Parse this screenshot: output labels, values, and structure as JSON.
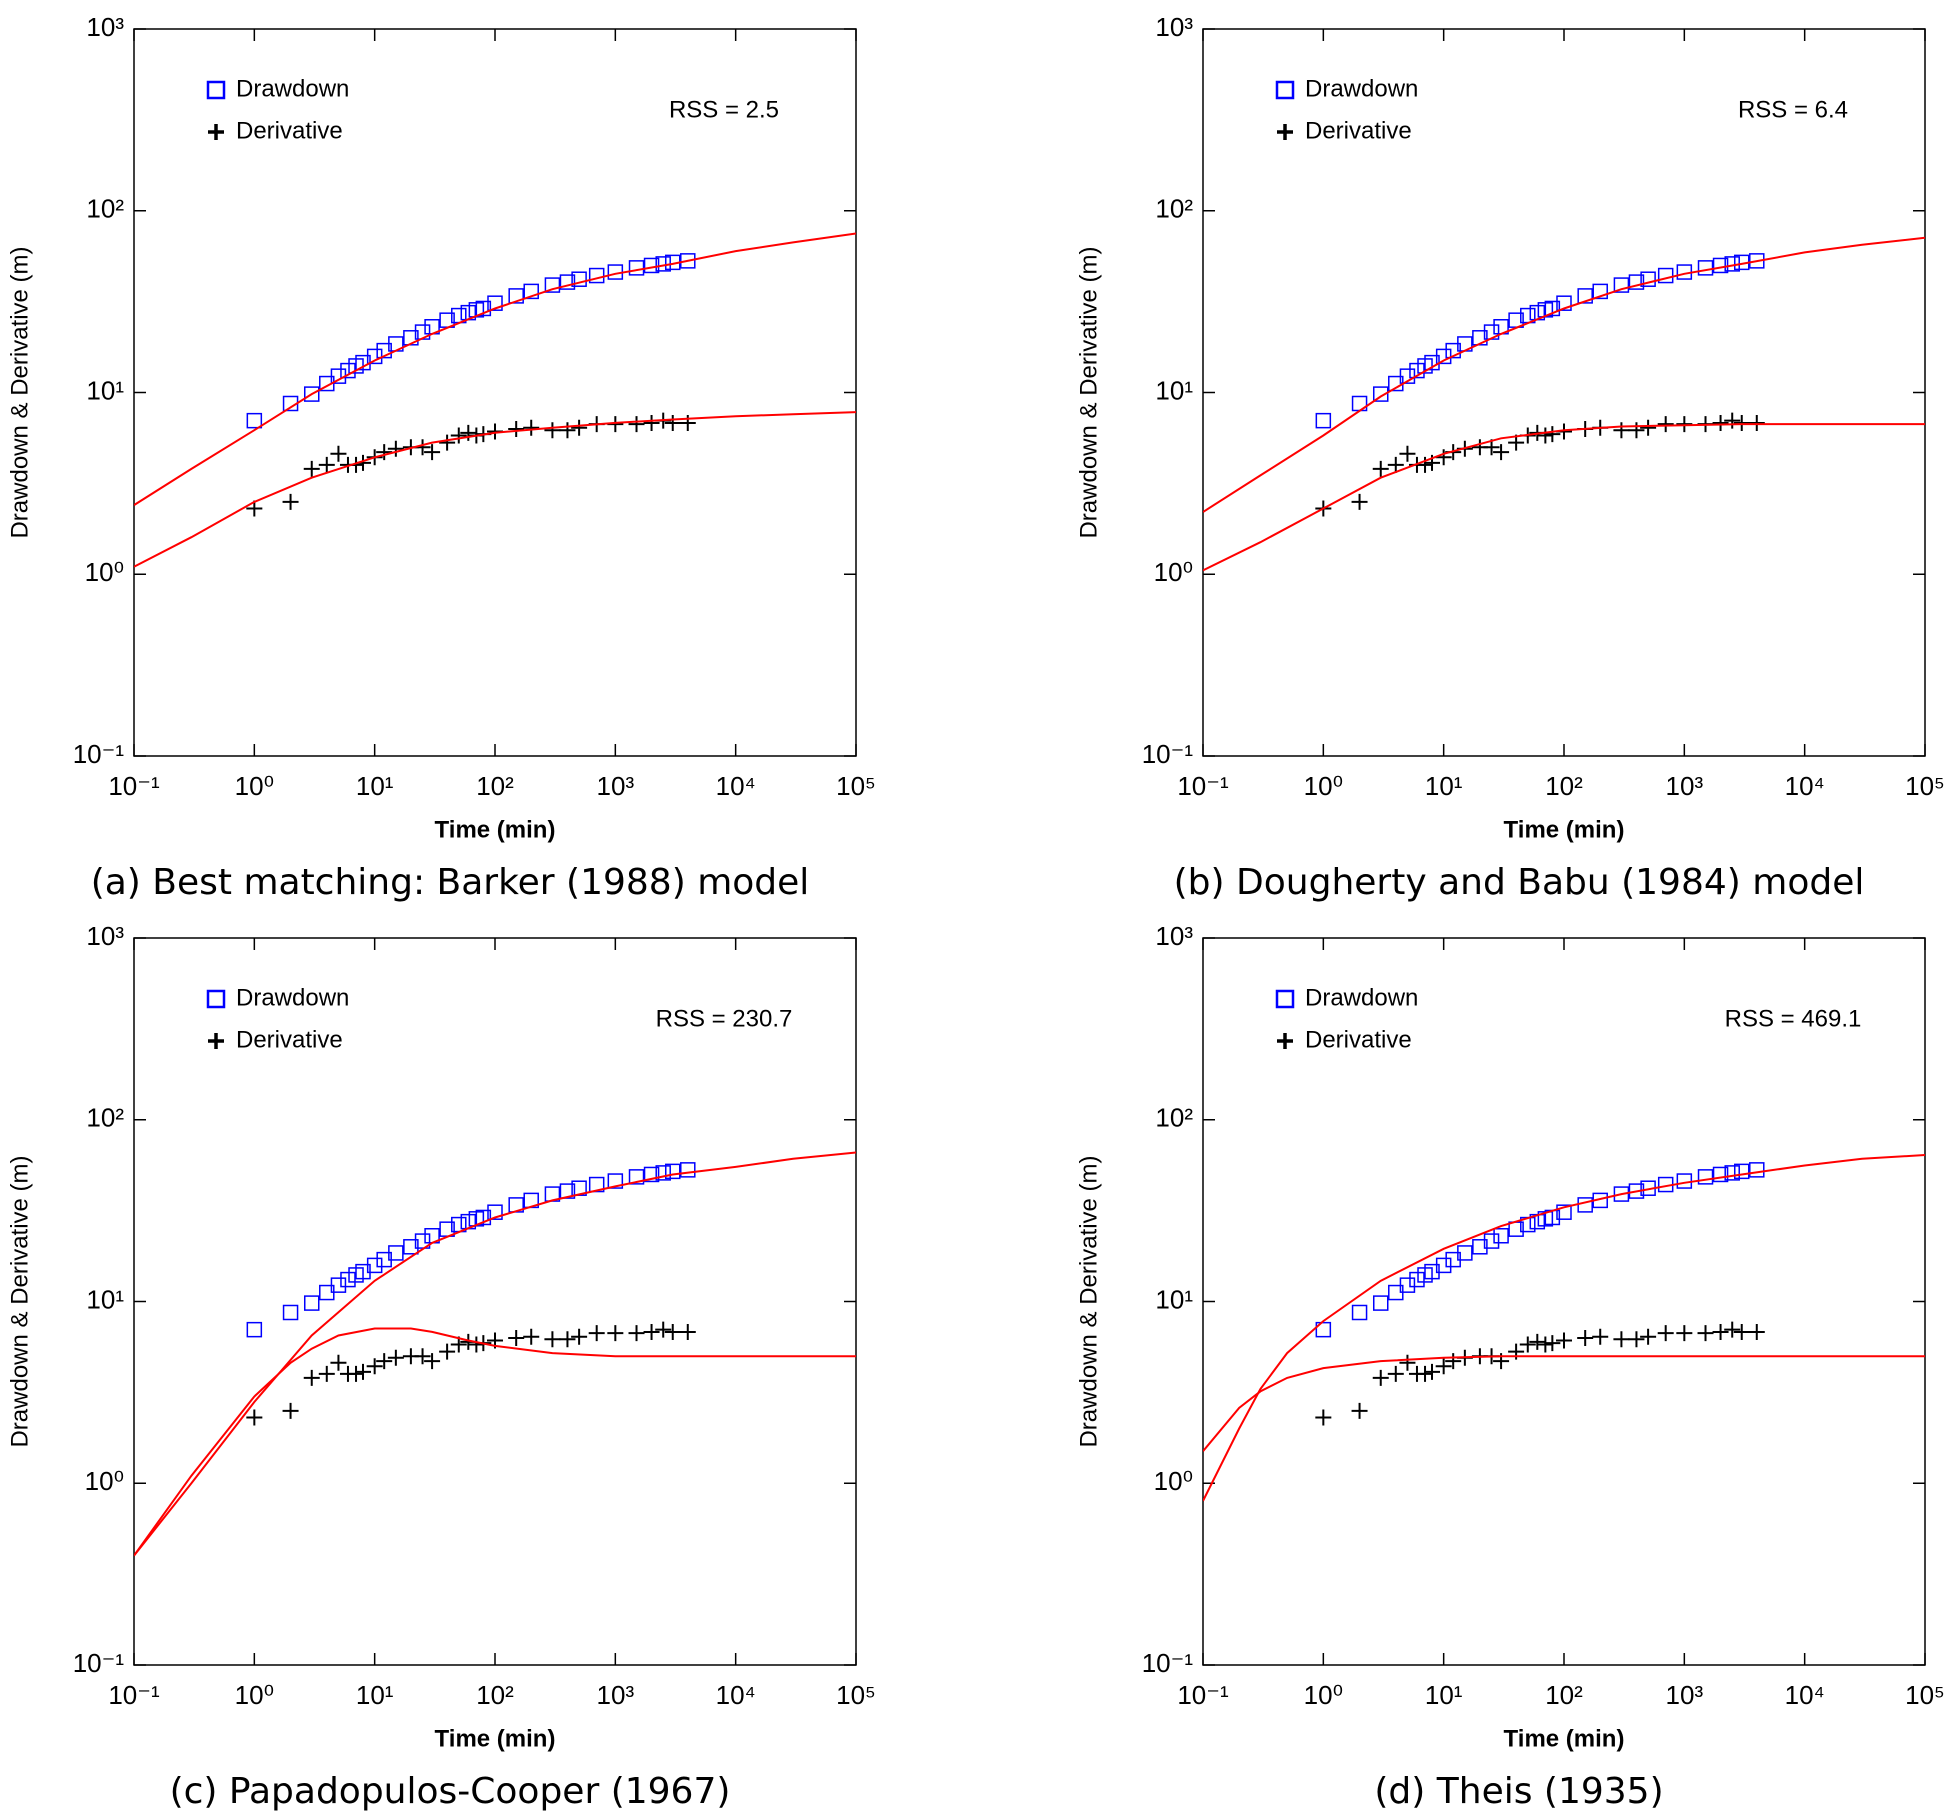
{
  "chart_data": [
    {
      "type": "scatter",
      "caption": "(a) Best matching: Barker (1988) model",
      "x_label": "Time (min)",
      "y_label": "Drawdown & Derivative (m)",
      "annotation": "RSS = 2.5",
      "log_x": true,
      "log_y": true,
      "xlim": [
        0.1,
        100000
      ],
      "ylim": [
        0.1,
        1000
      ],
      "xticks": [
        {
          "value": 0.1,
          "label": "10⁻¹"
        },
        {
          "value": 1,
          "label": "10⁰"
        },
        {
          "value": 10,
          "label": "10¹"
        },
        {
          "value": 100,
          "label": "10²"
        },
        {
          "value": 1000,
          "label": "10³"
        },
        {
          "value": 10000,
          "label": "10⁴"
        },
        {
          "value": 100000,
          "label": "10⁵"
        }
      ],
      "yticks": [
        {
          "value": 0.1,
          "label": "10⁻¹"
        },
        {
          "value": 1,
          "label": "10⁰"
        },
        {
          "value": 10,
          "label": "10¹"
        },
        {
          "value": 100,
          "label": "10²"
        },
        {
          "value": 1000,
          "label": "10³"
        }
      ],
      "series": [
        {
          "name": "Drawdown",
          "color": "#0000ff",
          "marker": "square",
          "x": [
            1,
            2,
            3,
            4,
            5,
            6,
            7,
            8,
            10,
            12,
            15,
            20,
            25,
            30,
            40,
            50,
            60,
            70,
            80,
            100,
            150,
            200,
            300,
            400,
            500,
            700,
            1000,
            1500,
            2000,
            2500,
            3000,
            4000
          ],
          "values": [
            7.0,
            8.7,
            9.8,
            11.2,
            12.3,
            13.2,
            14.0,
            14.6,
            15.8,
            17,
            18.5,
            20,
            21.5,
            23,
            25,
            26.5,
            27.5,
            28.5,
            29,
            31,
            34,
            36,
            39,
            40.5,
            42,
            44,
            46,
            48.5,
            50,
            51,
            52,
            53
          ]
        },
        {
          "name": "Derivative",
          "color": "#000000",
          "marker": "plus",
          "x": [
            1,
            2,
            3,
            4,
            5,
            6,
            7,
            8,
            10,
            12,
            15,
            20,
            25,
            30,
            40,
            50,
            60,
            70,
            80,
            100,
            150,
            200,
            300,
            400,
            500,
            700,
            1000,
            1500,
            2000,
            2500,
            3000,
            4000
          ],
          "values": [
            2.3,
            2.5,
            3.8,
            4.0,
            4.6,
            4.0,
            4.0,
            4.1,
            4.4,
            4.7,
            4.9,
            5.0,
            5.0,
            4.7,
            5.3,
            5.8,
            6.0,
            5.8,
            5.9,
            6.1,
            6.3,
            6.4,
            6.2,
            6.2,
            6.4,
            6.7,
            6.7,
            6.7,
            6.8,
            7.0,
            6.8,
            6.8
          ]
        },
        {
          "color": "#ff0000",
          "marker": "line",
          "x": [
            0.1,
            0.3,
            1,
            3,
            10,
            30,
            100,
            300,
            1000,
            3000,
            10000,
            30000,
            100000
          ],
          "values": [
            2.4,
            3.8,
            6.2,
            9.8,
            15,
            21,
            29,
            37,
            45,
            51,
            60,
            67,
            75
          ]
        },
        {
          "color": "#ff0000",
          "marker": "line",
          "x": [
            0.1,
            0.3,
            1,
            3,
            10,
            30,
            100,
            300,
            1000,
            3000,
            10000,
            30000,
            100000
          ],
          "values": [
            1.1,
            1.6,
            2.5,
            3.4,
            4.4,
            5.3,
            6.0,
            6.4,
            6.8,
            7.1,
            7.4,
            7.6,
            7.8
          ]
        }
      ]
    },
    {
      "type": "scatter",
      "caption": "(b) Dougherty and Babu (1984) model",
      "x_label": "Time (min)",
      "y_label": "Drawdown & Derivative (m)",
      "annotation": "RSS = 6.4",
      "log_x": true,
      "log_y": true,
      "xlim": [
        0.1,
        100000
      ],
      "ylim": [
        0.1,
        1000
      ],
      "xticks": [
        {
          "value": 0.1,
          "label": "10⁻¹"
        },
        {
          "value": 1,
          "label": "10⁰"
        },
        {
          "value": 10,
          "label": "10¹"
        },
        {
          "value": 100,
          "label": "10²"
        },
        {
          "value": 1000,
          "label": "10³"
        },
        {
          "value": 10000,
          "label": "10⁴"
        },
        {
          "value": 100000,
          "label": "10⁵"
        }
      ],
      "yticks": [
        {
          "value": 0.1,
          "label": "10⁻¹"
        },
        {
          "value": 1,
          "label": "10⁰"
        },
        {
          "value": 10,
          "label": "10¹"
        },
        {
          "value": 100,
          "label": "10²"
        },
        {
          "value": 1000,
          "label": "10³"
        }
      ],
      "series": [
        {
          "name": "Drawdown",
          "color": "#0000ff",
          "marker": "square",
          "x": [
            1,
            2,
            3,
            4,
            5,
            6,
            7,
            8,
            10,
            12,
            15,
            20,
            25,
            30,
            40,
            50,
            60,
            70,
            80,
            100,
            150,
            200,
            300,
            400,
            500,
            700,
            1000,
            1500,
            2000,
            2500,
            3000,
            4000
          ],
          "values": [
            7.0,
            8.7,
            9.8,
            11.2,
            12.3,
            13.2,
            14.0,
            14.6,
            15.8,
            17,
            18.5,
            20,
            21.5,
            23,
            25,
            26.5,
            27.5,
            28.5,
            29,
            31,
            34,
            36,
            39,
            40.5,
            42,
            44,
            46,
            48.5,
            50,
            51,
            52,
            53
          ]
        },
        {
          "name": "Derivative",
          "color": "#000000",
          "marker": "plus",
          "x": [
            1,
            2,
            3,
            4,
            5,
            6,
            7,
            8,
            10,
            12,
            15,
            20,
            25,
            30,
            40,
            50,
            60,
            70,
            80,
            100,
            150,
            200,
            300,
            400,
            500,
            700,
            1000,
            1500,
            2000,
            2500,
            3000,
            4000
          ],
          "values": [
            2.3,
            2.5,
            3.8,
            4.0,
            4.6,
            4.0,
            4.0,
            4.1,
            4.4,
            4.7,
            4.9,
            5.0,
            5.0,
            4.7,
            5.3,
            5.8,
            6.0,
            5.8,
            5.9,
            6.1,
            6.3,
            6.4,
            6.2,
            6.2,
            6.4,
            6.7,
            6.7,
            6.7,
            6.8,
            7.0,
            6.8,
            6.8
          ]
        },
        {
          "color": "#ff0000",
          "marker": "line",
          "x": [
            0.1,
            0.3,
            1,
            3,
            10,
            30,
            100,
            300,
            1000,
            3000,
            10000,
            30000,
            100000
          ],
          "values": [
            2.2,
            3.5,
            5.8,
            9.5,
            15,
            21,
            29,
            37,
            45,
            51,
            59,
            65,
            71
          ]
        },
        {
          "color": "#ff0000",
          "marker": "line",
          "x": [
            0.1,
            0.3,
            1,
            3,
            10,
            30,
            100,
            300,
            1000,
            3000,
            10000,
            30000,
            100000
          ],
          "values": [
            1.05,
            1.5,
            2.3,
            3.4,
            4.6,
            5.6,
            6.2,
            6.5,
            6.6,
            6.7,
            6.7,
            6.7,
            6.7
          ]
        }
      ]
    },
    {
      "type": "scatter",
      "caption": "(c) Papadopulos-Cooper (1967)",
      "x_label": "Time (min)",
      "y_label": "Drawdown & Derivative (m)",
      "annotation": "RSS = 230.7",
      "log_x": true,
      "log_y": true,
      "xlim": [
        0.1,
        100000
      ],
      "ylim": [
        0.1,
        1000
      ],
      "xticks": [
        {
          "value": 0.1,
          "label": "10⁻¹"
        },
        {
          "value": 1,
          "label": "10⁰"
        },
        {
          "value": 10,
          "label": "10¹"
        },
        {
          "value": 100,
          "label": "10²"
        },
        {
          "value": 1000,
          "label": "10³"
        },
        {
          "value": 10000,
          "label": "10⁴"
        },
        {
          "value": 100000,
          "label": "10⁵"
        }
      ],
      "yticks": [
        {
          "value": 0.1,
          "label": "10⁻¹"
        },
        {
          "value": 1,
          "label": "10⁰"
        },
        {
          "value": 10,
          "label": "10¹"
        },
        {
          "value": 100,
          "label": "10²"
        },
        {
          "value": 1000,
          "label": "10³"
        }
      ],
      "series": [
        {
          "name": "Drawdown",
          "color": "#0000ff",
          "marker": "square",
          "x": [
            1,
            2,
            3,
            4,
            5,
            6,
            7,
            8,
            10,
            12,
            15,
            20,
            25,
            30,
            40,
            50,
            60,
            70,
            80,
            100,
            150,
            200,
            300,
            400,
            500,
            700,
            1000,
            1500,
            2000,
            2500,
            3000,
            4000
          ],
          "values": [
            7.0,
            8.7,
            9.8,
            11.2,
            12.3,
            13.2,
            14.0,
            14.6,
            15.8,
            17,
            18.5,
            20,
            21.5,
            23,
            25,
            26.5,
            27.5,
            28.5,
            29,
            31,
            34,
            36,
            39,
            40.5,
            42,
            44,
            46,
            48.5,
            50,
            51,
            52,
            53
          ]
        },
        {
          "name": "Derivative",
          "color": "#000000",
          "marker": "plus",
          "x": [
            1,
            2,
            3,
            4,
            5,
            6,
            7,
            8,
            10,
            12,
            15,
            20,
            25,
            30,
            40,
            50,
            60,
            70,
            80,
            100,
            150,
            200,
            300,
            400,
            500,
            700,
            1000,
            1500,
            2000,
            2500,
            3000,
            4000
          ],
          "values": [
            2.3,
            2.5,
            3.8,
            4.0,
            4.6,
            4.0,
            4.0,
            4.1,
            4.4,
            4.7,
            4.9,
            5.0,
            5.0,
            4.7,
            5.3,
            5.8,
            6.0,
            5.8,
            5.9,
            6.1,
            6.3,
            6.4,
            6.2,
            6.2,
            6.4,
            6.7,
            6.7,
            6.7,
            6.8,
            7.0,
            6.8,
            6.8
          ]
        },
        {
          "color": "#ff0000",
          "marker": "line",
          "x": [
            0.1,
            0.3,
            1,
            3,
            10,
            30,
            100,
            300,
            1000,
            3000,
            10000,
            30000,
            100000
          ],
          "values": [
            0.4,
            1.0,
            2.8,
            6.5,
            13,
            21,
            29,
            36,
            43,
            50,
            55,
            61,
            66
          ]
        },
        {
          "color": "#ff0000",
          "marker": "line",
          "x": [
            0.1,
            0.3,
            1,
            2,
            3,
            5,
            10,
            20,
            30,
            60,
            100,
            300,
            1000,
            3000,
            10000,
            30000,
            100000
          ],
          "values": [
            0.4,
            1.1,
            3.0,
            4.6,
            5.5,
            6.5,
            7.1,
            7.1,
            6.8,
            6.1,
            5.7,
            5.2,
            5.0,
            5.0,
            5.0,
            5.0,
            5.0
          ]
        }
      ]
    },
    {
      "type": "scatter",
      "caption": "(d) Theis (1935)",
      "x_label": "Time (min)",
      "y_label": "Drawdown & Derivative (m)",
      "annotation": "RSS = 469.1",
      "log_x": true,
      "log_y": true,
      "xlim": [
        0.1,
        100000
      ],
      "ylim": [
        0.1,
        1000
      ],
      "xticks": [
        {
          "value": 0.1,
          "label": "10⁻¹"
        },
        {
          "value": 1,
          "label": "10⁰"
        },
        {
          "value": 10,
          "label": "10¹"
        },
        {
          "value": 100,
          "label": "10²"
        },
        {
          "value": 1000,
          "label": "10³"
        },
        {
          "value": 10000,
          "label": "10⁴"
        },
        {
          "value": 100000,
          "label": "10⁵"
        }
      ],
      "yticks": [
        {
          "value": 0.1,
          "label": "10⁻¹"
        },
        {
          "value": 1,
          "label": "10⁰"
        },
        {
          "value": 10,
          "label": "10¹"
        },
        {
          "value": 100,
          "label": "10²"
        },
        {
          "value": 1000,
          "label": "10³"
        }
      ],
      "series": [
        {
          "name": "Drawdown",
          "color": "#0000ff",
          "marker": "square",
          "x": [
            1,
            2,
            3,
            4,
            5,
            6,
            7,
            8,
            10,
            12,
            15,
            20,
            25,
            30,
            40,
            50,
            60,
            70,
            80,
            100,
            150,
            200,
            300,
            400,
            500,
            700,
            1000,
            1500,
            2000,
            2500,
            3000,
            4000
          ],
          "values": [
            7.0,
            8.7,
            9.8,
            11.2,
            12.3,
            13.2,
            14.0,
            14.6,
            15.8,
            17,
            18.5,
            20,
            21.5,
            23,
            25,
            26.5,
            27.5,
            28.5,
            29,
            31,
            34,
            36,
            39,
            40.5,
            42,
            44,
            46,
            48.5,
            50,
            51,
            52,
            53
          ]
        },
        {
          "name": "Derivative",
          "color": "#000000",
          "marker": "plus",
          "x": [
            1,
            2,
            3,
            4,
            5,
            6,
            7,
            8,
            10,
            12,
            15,
            20,
            25,
            30,
            40,
            50,
            60,
            70,
            80,
            100,
            150,
            200,
            300,
            400,
            500,
            700,
            1000,
            1500,
            2000,
            2500,
            3000,
            4000
          ],
          "values": [
            2.3,
            2.5,
            3.8,
            4.0,
            4.6,
            4.0,
            4.0,
            4.1,
            4.4,
            4.7,
            4.9,
            5.0,
            5.0,
            4.7,
            5.3,
            5.8,
            6.0,
            5.8,
            5.9,
            6.1,
            6.3,
            6.4,
            6.2,
            6.2,
            6.4,
            6.7,
            6.7,
            6.7,
            6.8,
            7.0,
            6.8,
            6.8
          ]
        },
        {
          "color": "#ff0000",
          "marker": "line",
          "x": [
            0.1,
            0.2,
            0.3,
            0.5,
            1,
            3,
            10,
            30,
            100,
            300,
            1000,
            3000,
            10000,
            30000,
            100000
          ],
          "values": [
            0.8,
            2.0,
            3.3,
            5.2,
            7.8,
            13,
            19.5,
            26,
            33,
            39,
            45,
            50,
            56,
            61,
            64
          ]
        },
        {
          "color": "#ff0000",
          "marker": "line",
          "x": [
            0.1,
            0.2,
            0.3,
            0.5,
            1,
            3,
            10,
            30,
            100,
            1000,
            10000,
            100000
          ],
          "values": [
            1.5,
            2.6,
            3.2,
            3.8,
            4.3,
            4.7,
            4.9,
            5.0,
            5.0,
            5.0,
            5.0,
            5.0
          ]
        }
      ]
    }
  ]
}
